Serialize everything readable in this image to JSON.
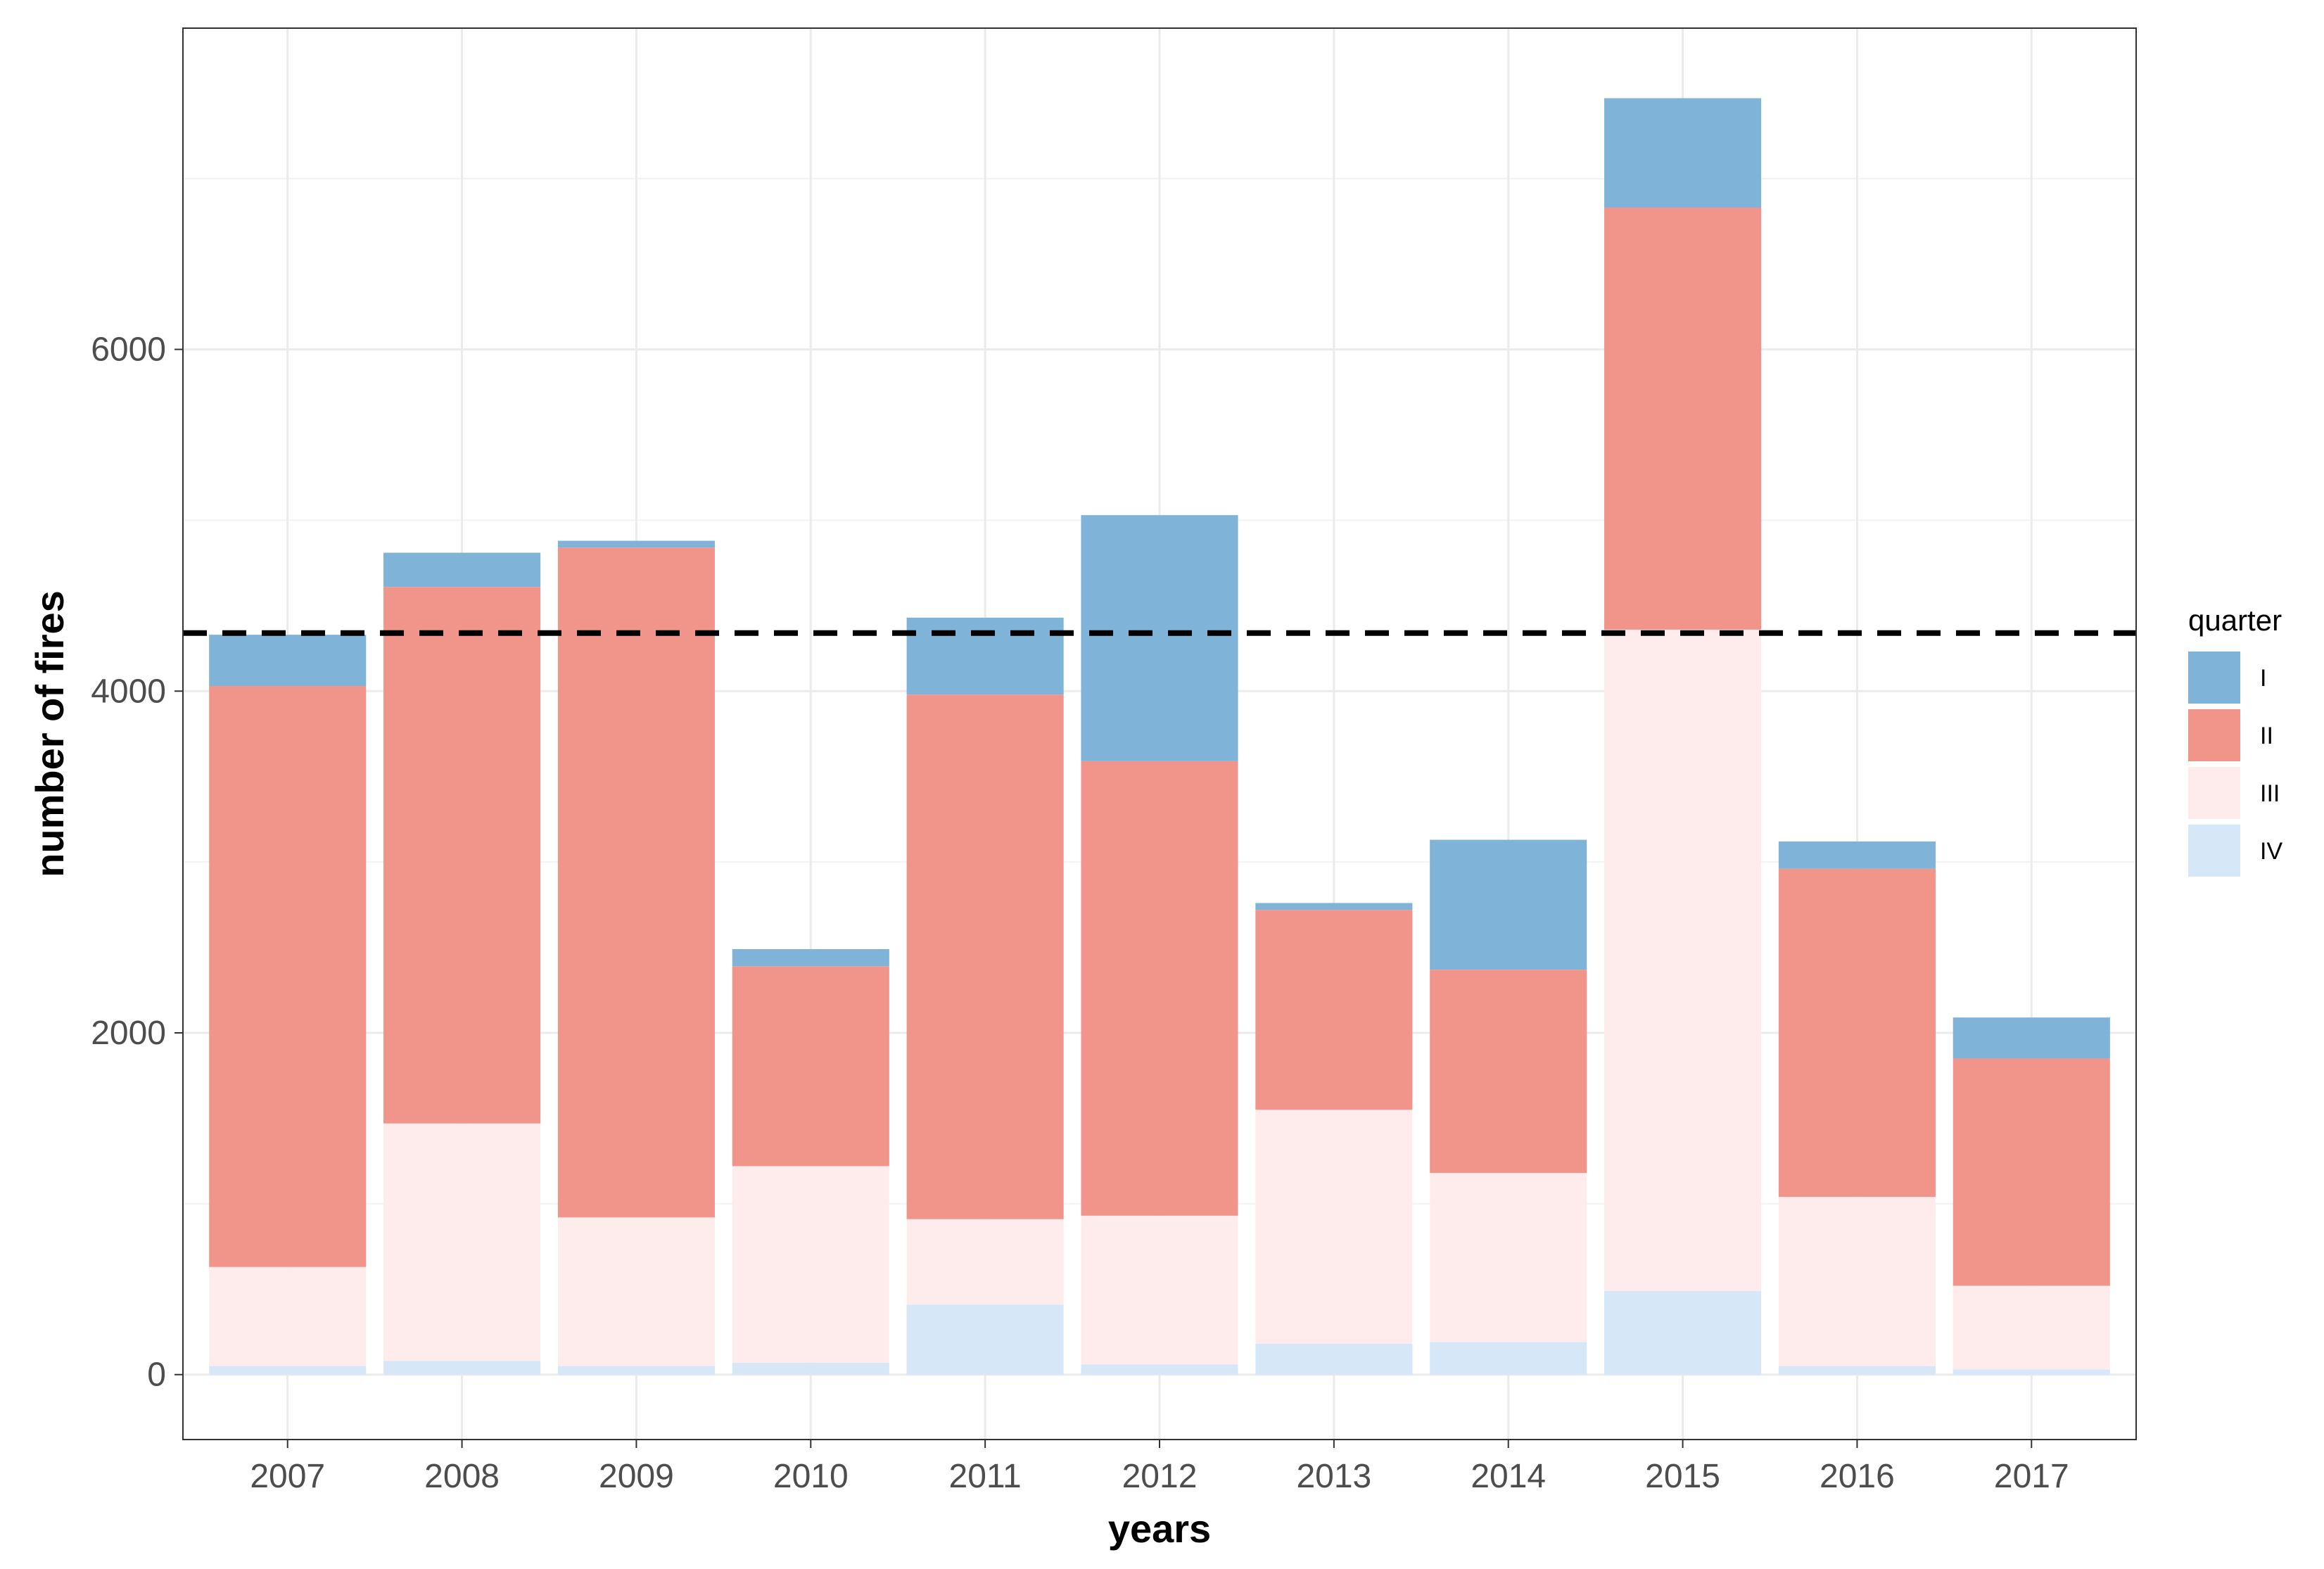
{
  "chart_data": {
    "type": "bar",
    "stacked": true,
    "categories": [
      "2007",
      "2008",
      "2009",
      "2010",
      "2011",
      "2012",
      "2013",
      "2014",
      "2015",
      "2016",
      "2017"
    ],
    "series": [
      {
        "name": "I",
        "color": "#7fb3d7",
        "values": [
          300,
          200,
          40,
          100,
          450,
          1440,
          40,
          760,
          640,
          160,
          240
        ]
      },
      {
        "name": "II",
        "color": "#f1958a",
        "values": [
          3400,
          3140,
          3920,
          1170,
          3070,
          2660,
          1170,
          1190,
          2470,
          1920,
          1330
        ]
      },
      {
        "name": "III",
        "color": "#fdeceb",
        "values": [
          580,
          1390,
          870,
          1150,
          500,
          870,
          1370,
          990,
          3870,
          990,
          490
        ]
      },
      {
        "name": "IV",
        "color": "#d6e8f7",
        "values": [
          50,
          80,
          50,
          70,
          410,
          60,
          180,
          190,
          490,
          50,
          30
        ]
      }
    ],
    "reference_line": {
      "value": 4340,
      "style": "dashed",
      "color": "#000000"
    },
    "xlabel": "years",
    "ylabel": "number of fires",
    "ylim": [
      -380,
      7880
    ],
    "yticks": [
      0,
      2000,
      4000,
      6000
    ],
    "ytick_labels": [
      "0",
      "2000",
      "4000",
      "6000"
    ],
    "ygrid_minor": [
      1000,
      3000,
      5000,
      7000
    ],
    "grid": true,
    "legend": {
      "title": "quarter",
      "position": "right",
      "order": [
        "I",
        "II",
        "III",
        "IV"
      ]
    }
  }
}
